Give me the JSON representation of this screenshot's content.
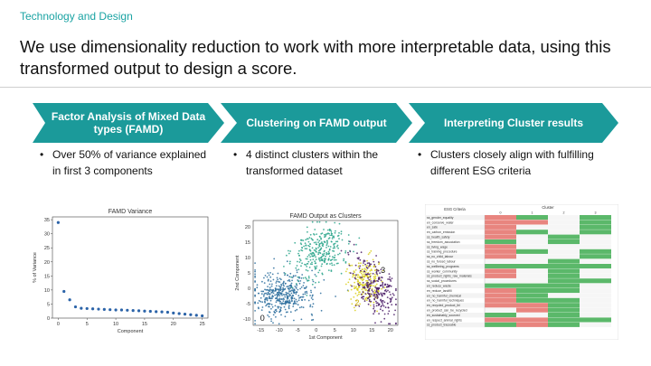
{
  "header": {
    "section": "Technology and Design",
    "headline": "We use dimensionality reduction to work with more interpretable data, using this transformed output to design a score."
  },
  "colors": {
    "accent": "#1aa3a3",
    "teal_dark": "#1b9a9a"
  },
  "steps": [
    {
      "label": "Factor Analysis of Mixed Data types (FAMD)",
      "bullet": "Over 50% of variance explained in first 3 components"
    },
    {
      "label": "Clustering on FAMD output",
      "bullet": "4 distinct clusters within the transformed dataset"
    },
    {
      "label": "Interpreting Cluster results",
      "bullet": "Clusters closely align with fulfilling different ESG criteria"
    }
  ],
  "chart_data": [
    {
      "type": "scatter",
      "title": "FAMD Variance",
      "xlabel": "Component",
      "ylabel": "% of Variance",
      "xlim": [
        -1,
        26
      ],
      "ylim": [
        0,
        36
      ],
      "xticks": [
        0,
        5,
        10,
        15,
        20,
        25
      ],
      "yticks": [
        0,
        5,
        10,
        15,
        20,
        25,
        30,
        35
      ],
      "x": [
        0,
        1,
        2,
        3,
        4,
        5,
        6,
        7,
        8,
        9,
        10,
        11,
        12,
        13,
        14,
        15,
        16,
        17,
        18,
        19,
        20,
        21,
        22,
        23,
        24,
        25
      ],
      "y": [
        34,
        9.5,
        6.5,
        4,
        3.5,
        3.4,
        3.3,
        3.2,
        3.1,
        3.0,
        2.9,
        2.9,
        2.8,
        2.7,
        2.6,
        2.5,
        2.4,
        2.3,
        2.2,
        2.1,
        1.8,
        1.6,
        1.4,
        1.2,
        1.0,
        0.8
      ]
    },
    {
      "type": "scatter",
      "title": "FAMD Output as Clusters",
      "xlabel": "1st Component",
      "ylabel": "2nd Component",
      "xlim": [
        -17,
        22
      ],
      "ylim": [
        -12,
        22
      ],
      "xticks": [
        -15,
        -10,
        -5,
        0,
        5,
        10,
        15,
        20
      ],
      "yticks": [
        -10,
        -5,
        0,
        5,
        10,
        15,
        20
      ],
      "cluster_labels": [
        "0",
        "1",
        "2",
        "3"
      ],
      "clusters": [
        {
          "label": "0",
          "color": "#2d6f9e",
          "cx": -9,
          "cy": -2,
          "sx": 4.5,
          "sy": 3.5,
          "n": 420
        },
        {
          "label": "1",
          "color": "#2aa58b",
          "cx": 1,
          "cy": 12,
          "sx": 3.5,
          "sy": 4.5,
          "n": 300
        },
        {
          "label": "2",
          "color": "#d9cf1e",
          "cx": 13,
          "cy": 2,
          "sx": 2.2,
          "sy": 3.5,
          "n": 220
        },
        {
          "label": "3",
          "color": "#4a1c67",
          "cx": 16,
          "cy": 0,
          "sx": 2.5,
          "sy": 5,
          "n": 260
        }
      ]
    }
  ],
  "table": {
    "header_left": "ESG Criteria",
    "header_right": "Cluster",
    "cluster_cols": [
      "0",
      "1",
      "2",
      "3"
    ],
    "rows": [
      "ss_gender_equality",
      "en_conserve_water",
      "en_safe",
      "en_carbon_emission",
      "ss_health_safety",
      "ss_freedom_association",
      "ss_living_wage",
      "ss_training_procedure",
      "ss_no_child_labour",
      "ss_no_forced_labour",
      "ss_wellbeing_programs",
      "ss_worker_community",
      "ss_product_rights_raw_materials",
      "ss_social_procedures",
      "en_reduce_waste",
      "en_reduce_landfill",
      "en_no_harmful_chemical",
      "en_no_harmful_techniques",
      "en_recycled_product_lbl",
      "en_product_can_be_recycled",
      "en_sustainably_sourced",
      "en_respect_animal_rights",
      "ss_product_traceable"
    ]
  }
}
